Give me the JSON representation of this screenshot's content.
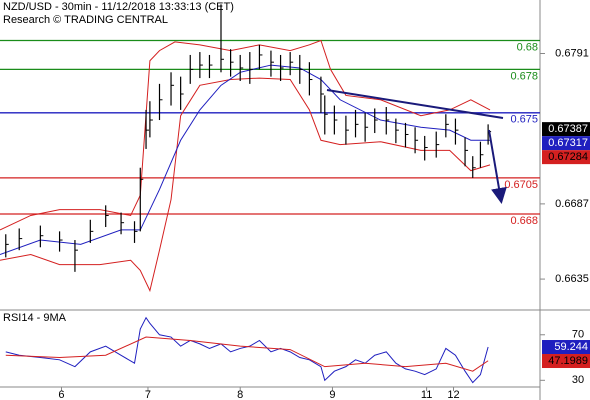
{
  "chart_data": [
    {
      "type": "ohlc",
      "title": "NZD/USD - 30min - 11/12/2018 13:33:13 (CET)",
      "subtitle": "Research © TRADING CENTRAL",
      "xlim": [
        0,
        281
      ],
      "xticks": [
        {
          "value": 32,
          "label": "6"
        },
        {
          "value": 77,
          "label": "7"
        },
        {
          "value": 125,
          "label": "8"
        },
        {
          "value": 173,
          "label": "9"
        },
        {
          "value": 222,
          "label": "11"
        },
        {
          "value": 236,
          "label": "12"
        }
      ],
      "ylim": [
        0.6615,
        0.6828
      ],
      "yticks": [
        0.6791,
        0.6687,
        0.6635
      ],
      "levels": [
        {
          "value": 0.68,
          "color": "#1a8c1a"
        },
        {
          "value": 0.678,
          "color": "#1a8c1a"
        },
        {
          "value": 0.675,
          "color": "#1f1fbf"
        },
        {
          "value": 0.6705,
          "color": "#d42020"
        },
        {
          "value": 0.668,
          "color": "#d42020"
        }
      ],
      "last_labels": [
        {
          "value": 0.67387,
          "color": "#000000",
          "text_color": "#ffffff"
        },
        {
          "value": 0.67317,
          "color": "#1f1fbf",
          "text_color": "#ffffff"
        },
        {
          "value": 0.67284,
          "color": "#d42020",
          "text_color": "#000000"
        }
      ],
      "bars": {
        "color": "#000000",
        "x": [
          3,
          10,
          21,
          31,
          39,
          47,
          55,
          63,
          70,
          73,
          76,
          78,
          83,
          89,
          94,
          99,
          104,
          109,
          115,
          120,
          125,
          130,
          135,
          141,
          146,
          151,
          156,
          161,
          167,
          169,
          174,
          180,
          185,
          190,
          195,
          201,
          206,
          211,
          216,
          221,
          227,
          232,
          237,
          242,
          246,
          250,
          254
        ],
        "high": [
          0.6666,
          0.667,
          0.6672,
          0.6668,
          0.6662,
          0.6676,
          0.6686,
          0.6681,
          0.6675,
          0.6712,
          0.6752,
          0.6758,
          0.677,
          0.6778,
          0.6775,
          0.679,
          0.6792,
          0.679,
          0.6825,
          0.6794,
          0.679,
          0.6792,
          0.6797,
          0.6793,
          0.679,
          0.6792,
          0.679,
          0.6785,
          0.6775,
          0.6762,
          0.6755,
          0.6748,
          0.6752,
          0.675,
          0.6753,
          0.6754,
          0.6746,
          0.6743,
          0.674,
          0.6734,
          0.6737,
          0.6749,
          0.6746,
          0.6733,
          0.672,
          0.673,
          0.6742
        ],
        "low": [
          0.665,
          0.6655,
          0.6657,
          0.6654,
          0.664,
          0.666,
          0.6671,
          0.6666,
          0.666,
          0.6668,
          0.6725,
          0.6733,
          0.6745,
          0.6755,
          0.6752,
          0.677,
          0.6774,
          0.6774,
          0.6778,
          0.6775,
          0.6772,
          0.677,
          0.678,
          0.6775,
          0.6772,
          0.6776,
          0.677,
          0.6762,
          0.675,
          0.6735,
          0.6735,
          0.6728,
          0.6733,
          0.673,
          0.6736,
          0.6735,
          0.6729,
          0.6726,
          0.6722,
          0.6717,
          0.6719,
          0.6733,
          0.6728,
          0.6713,
          0.6705,
          0.6712,
          0.6728
        ],
        "close": [
          0.6659,
          0.6663,
          0.6665,
          0.6662,
          0.6655,
          0.6668,
          0.6679,
          0.6674,
          0.6668,
          0.6704,
          0.6738,
          0.6745,
          0.6759,
          0.6769,
          0.6763,
          0.678,
          0.6783,
          0.6783,
          0.6787,
          0.6785,
          0.6781,
          0.678,
          0.679,
          0.6785,
          0.6781,
          0.6785,
          0.678,
          0.6773,
          0.6763,
          0.6749,
          0.6745,
          0.6738,
          0.6742,
          0.674,
          0.6745,
          0.6745,
          0.6738,
          0.6735,
          0.6731,
          0.6726,
          0.6728,
          0.6742,
          0.6738,
          0.6724,
          0.6712,
          0.6721,
          0.6737
        ]
      },
      "series": [
        {
          "color": "#d42020",
          "x": [
            0,
            16,
            31,
            52,
            68,
            73,
            78,
            83,
            91,
            104,
            120,
            135,
            151,
            161,
            167,
            172,
            180,
            198,
            219,
            234,
            245,
            255
          ],
          "values": [
            0.6669,
            0.6679,
            0.6683,
            0.6683,
            0.6679,
            0.6693,
            0.6786,
            0.6793,
            0.6799,
            0.6797,
            0.6793,
            0.6797,
            0.6793,
            0.6797,
            0.68,
            0.678,
            0.6762,
            0.6759,
            0.6748,
            0.6752,
            0.6759,
            0.6752
          ]
        },
        {
          "color": "#d42020",
          "x": [
            0,
            16,
            31,
            52,
            68,
            73,
            78,
            83,
            89,
            94,
            104,
            120,
            135,
            151,
            161,
            167,
            177,
            198,
            219,
            234,
            245,
            255
          ],
          "values": [
            0.6648,
            0.6652,
            0.6645,
            0.6645,
            0.6648,
            0.6641,
            0.6627,
            0.6655,
            0.669,
            0.6748,
            0.6769,
            0.6773,
            0.6774,
            0.6773,
            0.6752,
            0.6731,
            0.6728,
            0.673,
            0.6724,
            0.6724,
            0.671,
            0.6714
          ]
        },
        {
          "color": "#1f1fbf",
          "x": [
            0,
            21,
            42,
            63,
            73,
            83,
            94,
            104,
            115,
            125,
            141,
            156,
            167,
            177,
            198,
            219,
            234,
            245,
            255
          ],
          "values": [
            0.6652,
            0.6662,
            0.6659,
            0.6669,
            0.6669,
            0.6697,
            0.6731,
            0.6752,
            0.6769,
            0.6778,
            0.6783,
            0.6781,
            0.6773,
            0.6759,
            0.6745,
            0.674,
            0.6738,
            0.6731,
            0.6731
          ]
        }
      ]
    },
    {
      "type": "line",
      "title": "RSI14 - 9MA",
      "ylim": [
        25,
        90
      ],
      "yticks": [
        70,
        30
      ],
      "last_labels": [
        {
          "value": 59.244,
          "color": "#1f1fbf",
          "text_color": "#ffffff"
        },
        {
          "value": 47.1989,
          "color": "#d42020",
          "text_color": "#000000"
        }
      ],
      "series": [
        {
          "color": "#1f1fbf",
          "x": [
            3,
            10,
            21,
            31,
            39,
            47,
            55,
            63,
            70,
            73,
            76,
            78,
            83,
            89,
            94,
            99,
            104,
            109,
            115,
            120,
            125,
            130,
            135,
            141,
            146,
            151,
            156,
            161,
            167,
            169,
            174,
            180,
            185,
            190,
            195,
            201,
            206,
            211,
            216,
            221,
            227,
            232,
            237,
            242,
            246,
            250,
            254
          ],
          "values": [
            55,
            52,
            50,
            48,
            42,
            55,
            60,
            52,
            45,
            75,
            85,
            80,
            70,
            68,
            60,
            65,
            62,
            58,
            62,
            55,
            58,
            60,
            65,
            55,
            58,
            55,
            50,
            48,
            42,
            30,
            38,
            42,
            48,
            45,
            52,
            55,
            45,
            40,
            38,
            35,
            40,
            58,
            52,
            38,
            28,
            35,
            59.244
          ]
        },
        {
          "color": "#d42020",
          "x": [
            3,
            31,
            55,
            76,
            99,
            125,
            151,
            169,
            190,
            211,
            232,
            246,
            254
          ],
          "values": [
            52,
            50,
            52,
            68,
            65,
            60,
            57,
            42,
            45,
            42,
            45,
            38,
            47.1989
          ]
        }
      ]
    }
  ]
}
